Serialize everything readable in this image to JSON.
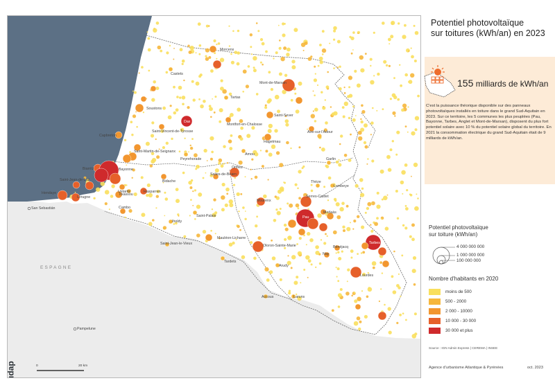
{
  "title": {
    "line1": "Potentiel photovoltaïque",
    "line2": "sur toitures (kWh/an) en 2023"
  },
  "key_figure": {
    "value": "155",
    "unit": "milliards de kWh/an",
    "icon": "solar-panel-sun-icon"
  },
  "description": "C'est la puissance théorique disponible sur des panneaux photovoltaïques installés en toiture dans le grand Sud-Aquitain en 2023. Sur ce territoire, les 5 communes les plus peuplées (Pau, Bayonne, Tarbes, Anglet et Mont-de-Marsan), disposent du plus fort potentiel solaire avec 10 % du potentiel solaire global du territoire. En 2021 la consommation électrique du grand Sud-Aquitain était de 9 milliards de kWh/an.",
  "legend_size": {
    "title_line1": "Potentiel photovoltaïque",
    "title_line2": "sur toiture (kWh/an)",
    "values": [
      "4 000 000 000",
      "1 000 000 000",
      "100 000 000"
    ]
  },
  "legend_class": {
    "title": "Nombre d'habitants en 2020",
    "classes": [
      {
        "label": "moins de 500",
        "color": "#f9df5d"
      },
      {
        "label": "500 - 2000",
        "color": "#f6b73c"
      },
      {
        "label": "2 000 - 10000",
        "color": "#f2962f"
      },
      {
        "label": "10 000 - 30 000",
        "color": "#e6602a"
      },
      {
        "label": "30 000 et plus",
        "color": "#cf2a2c"
      }
    ]
  },
  "source": "Source : IGN Admin Express | CEREMA | INSEE",
  "agency": "Agence d'urbanisme Atlantique & Pyrénées",
  "date": "oct. 2023",
  "logo": "audap",
  "scale": {
    "start": "0",
    "end": "20 km"
  },
  "country_label": "ESPAGNE",
  "colors": {
    "sea": "#5c7085",
    "spain": "#ececec",
    "territory": "#ffffff",
    "key_box": "#fdebd7"
  },
  "places": [
    "Morcenx",
    "Castets",
    "Mont-de-Marsan",
    "Tartas",
    "Soustons",
    "Dax",
    "Saint-Vincent-de-Tyrosse",
    "Saint-Sever",
    "Montfort-en-Chalosse",
    "Capbreton",
    "Aire-sur-l'Adour",
    "Hagetmau",
    "Saint-Martin-de-Seignanx",
    "Peyrehorade",
    "Amou",
    "Biarritz",
    "Bayonne",
    "Hendaye",
    "Saint-Jean-de-Luz",
    "Urrugne",
    "Ustaritz",
    "Garlin",
    "Orthez",
    "Salies-de-Béarn",
    "Bidache",
    "Hasparren",
    "Thèze",
    "Lembeye",
    "Cambo",
    "Serres-Castet",
    "Morlaàs",
    "Mourenx",
    "Pau",
    "Itxassou",
    "Saint-Palais",
    "Iholdy",
    "Tarbes",
    "Saint-Jean-le-Vieux",
    "Mauléon-Licharre",
    "Oloron-Sainte-Marie",
    "Nay",
    "Bénéjacq",
    "Tardets",
    "Arudy",
    "Lourdes",
    "Accous",
    "Laruns",
    "San Sebastián",
    "Pampelune"
  ]
}
